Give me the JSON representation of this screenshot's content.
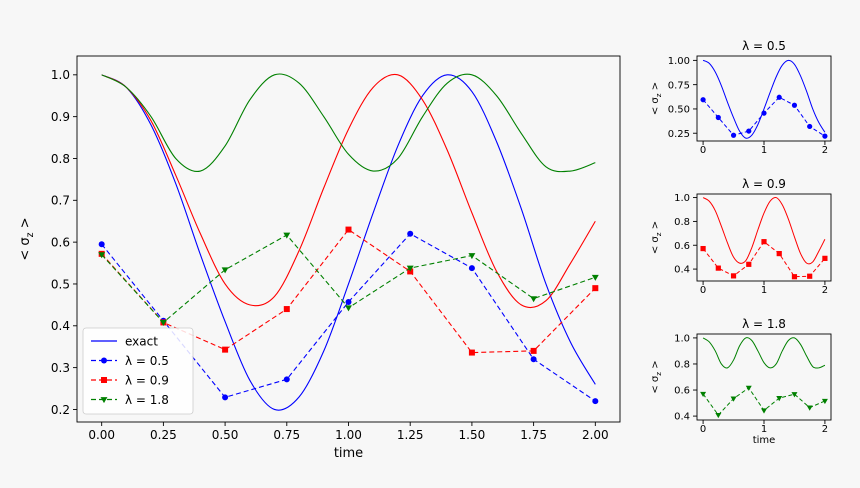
{
  "chart_data": [
    {
      "type": "line",
      "panel": "main",
      "title": "",
      "xlabel": "time",
      "ylabel": "< σ_z >",
      "xlim": [
        -0.1,
        2.1
      ],
      "ylim": [
        0.17,
        1.045
      ],
      "xticks": [
        0,
        0.25,
        0.5,
        0.75,
        1.0,
        1.25,
        1.5,
        1.75,
        2.0
      ],
      "xtick_labels": [
        "0.00",
        "0.25",
        "0.50",
        "0.75",
        "1.00",
        "1.25",
        "1.50",
        "1.75",
        "2.00"
      ],
      "yticks": [
        0.2,
        0.3,
        0.4,
        0.5,
        0.6,
        0.7,
        0.8,
        0.9,
        1.0
      ],
      "ytick_labels": [
        "0.2",
        "0.3",
        "0.4",
        "0.5",
        "0.6",
        "0.7",
        "0.8",
        "0.9",
        "1.0"
      ],
      "legend": {
        "placement": "lower-left",
        "entries": [
          "exact",
          "λ = 0.5",
          "λ = 0.9",
          "λ = 1.8"
        ]
      },
      "grid": false,
      "exact_curves": [
        {
          "color": "#0000ff",
          "lambda": 0.5,
          "x": [
            0,
            0.1,
            0.2,
            0.3,
            0.4,
            0.5,
            0.6,
            0.7,
            0.8,
            0.9,
            1.0,
            1.1,
            1.2,
            1.3,
            1.4,
            1.5,
            1.6,
            1.7,
            1.8,
            1.9,
            2.0
          ],
          "y": [
            1.0,
            0.97,
            0.88,
            0.74,
            0.57,
            0.41,
            0.27,
            0.2,
            0.23,
            0.34,
            0.5,
            0.67,
            0.83,
            0.95,
            1.0,
            0.96,
            0.84,
            0.68,
            0.5,
            0.36,
            0.26
          ]
        },
        {
          "color": "#ff0000",
          "lambda": 0.9,
          "x": [
            0,
            0.1,
            0.2,
            0.3,
            0.4,
            0.5,
            0.6,
            0.7,
            0.8,
            0.9,
            1.0,
            1.1,
            1.2,
            1.3,
            1.4,
            1.5,
            1.6,
            1.7,
            1.8,
            1.9,
            2.0
          ],
          "y": [
            1.0,
            0.97,
            0.89,
            0.76,
            0.62,
            0.5,
            0.45,
            0.47,
            0.58,
            0.73,
            0.87,
            0.97,
            1.0,
            0.94,
            0.82,
            0.67,
            0.53,
            0.45,
            0.46,
            0.55,
            0.65
          ]
        },
        {
          "color": "#008000",
          "lambda": 1.8,
          "x": [
            0,
            0.1,
            0.2,
            0.3,
            0.4,
            0.5,
            0.6,
            0.7,
            0.8,
            0.9,
            1.0,
            1.1,
            1.2,
            1.3,
            1.4,
            1.5,
            1.6,
            1.7,
            1.8,
            1.9,
            2.0
          ],
          "y": [
            1.0,
            0.97,
            0.9,
            0.8,
            0.77,
            0.83,
            0.94,
            1.0,
            0.98,
            0.9,
            0.81,
            0.77,
            0.8,
            0.9,
            0.98,
            1.0,
            0.95,
            0.86,
            0.78,
            0.77,
            0.79
          ]
        }
      ],
      "series": [
        {
          "name": "λ = 0.5",
          "color": "#0000ff",
          "marker": "circle",
          "x": [
            0,
            0.25,
            0.5,
            0.75,
            1.0,
            1.25,
            1.5,
            1.75,
            2.0
          ],
          "y": [
            0.595,
            0.412,
            0.229,
            0.272,
            0.457,
            0.62,
            0.538,
            0.32,
            0.22
          ]
        },
        {
          "name": "λ = 0.9",
          "color": "#ff0000",
          "marker": "square",
          "x": [
            0,
            0.25,
            0.5,
            0.75,
            1.0,
            1.25,
            1.5,
            1.75,
            2.0
          ],
          "y": [
            0.572,
            0.408,
            0.343,
            0.44,
            0.63,
            0.53,
            0.336,
            0.34,
            0.49
          ]
        },
        {
          "name": "λ = 1.8",
          "color": "#008000",
          "marker": "triangle-down",
          "x": [
            0,
            0.25,
            0.5,
            0.75,
            1.0,
            1.25,
            1.5,
            1.75,
            2.0
          ],
          "y": [
            0.57,
            0.408,
            0.534,
            0.617,
            0.443,
            0.538,
            0.568,
            0.465,
            0.516
          ]
        }
      ]
    },
    {
      "type": "line",
      "panel": "small-1",
      "title": "λ = 0.5",
      "xlabel": "",
      "ylabel": "< σ_z >",
      "xlim": [
        -0.1,
        2.1
      ],
      "ylim": [
        0.17,
        1.045
      ],
      "xticks": [
        0,
        1,
        2
      ],
      "xtick_labels": [
        "0",
        "1",
        "2"
      ],
      "yticks": [
        0.25,
        0.5,
        0.75,
        1.0
      ],
      "ytick_labels": [
        "0.25",
        "0.50",
        "0.75",
        "1.00"
      ],
      "color": "#0000ff",
      "marker": "circle",
      "series_ref": 0
    },
    {
      "type": "line",
      "panel": "small-2",
      "title": "λ = 0.9",
      "xlabel": "",
      "ylabel": "< σ_z >",
      "xlim": [
        -0.1,
        2.1
      ],
      "ylim": [
        0.3,
        1.03
      ],
      "xticks": [
        0,
        1,
        2
      ],
      "xtick_labels": [
        "0",
        "1",
        "2"
      ],
      "yticks": [
        0.4,
        0.6,
        0.8,
        1.0
      ],
      "ytick_labels": [
        "0.4",
        "0.6",
        "0.8",
        "1.0"
      ],
      "color": "#ff0000",
      "marker": "square",
      "series_ref": 1
    },
    {
      "type": "line",
      "panel": "small-3",
      "title": "λ = 1.8",
      "xlabel": "time",
      "ylabel": "< σ_z >",
      "xlim": [
        -0.1,
        2.1
      ],
      "ylim": [
        0.37,
        1.03
      ],
      "xticks": [
        0,
        1,
        2
      ],
      "xtick_labels": [
        "0",
        "1",
        "2"
      ],
      "yticks": [
        0.4,
        0.6,
        0.8,
        1.0
      ],
      "ytick_labels": [
        "0.4",
        "0.6",
        "0.8",
        "1.0"
      ],
      "color": "#008000",
      "marker": "triangle-down",
      "series_ref": 2
    }
  ]
}
